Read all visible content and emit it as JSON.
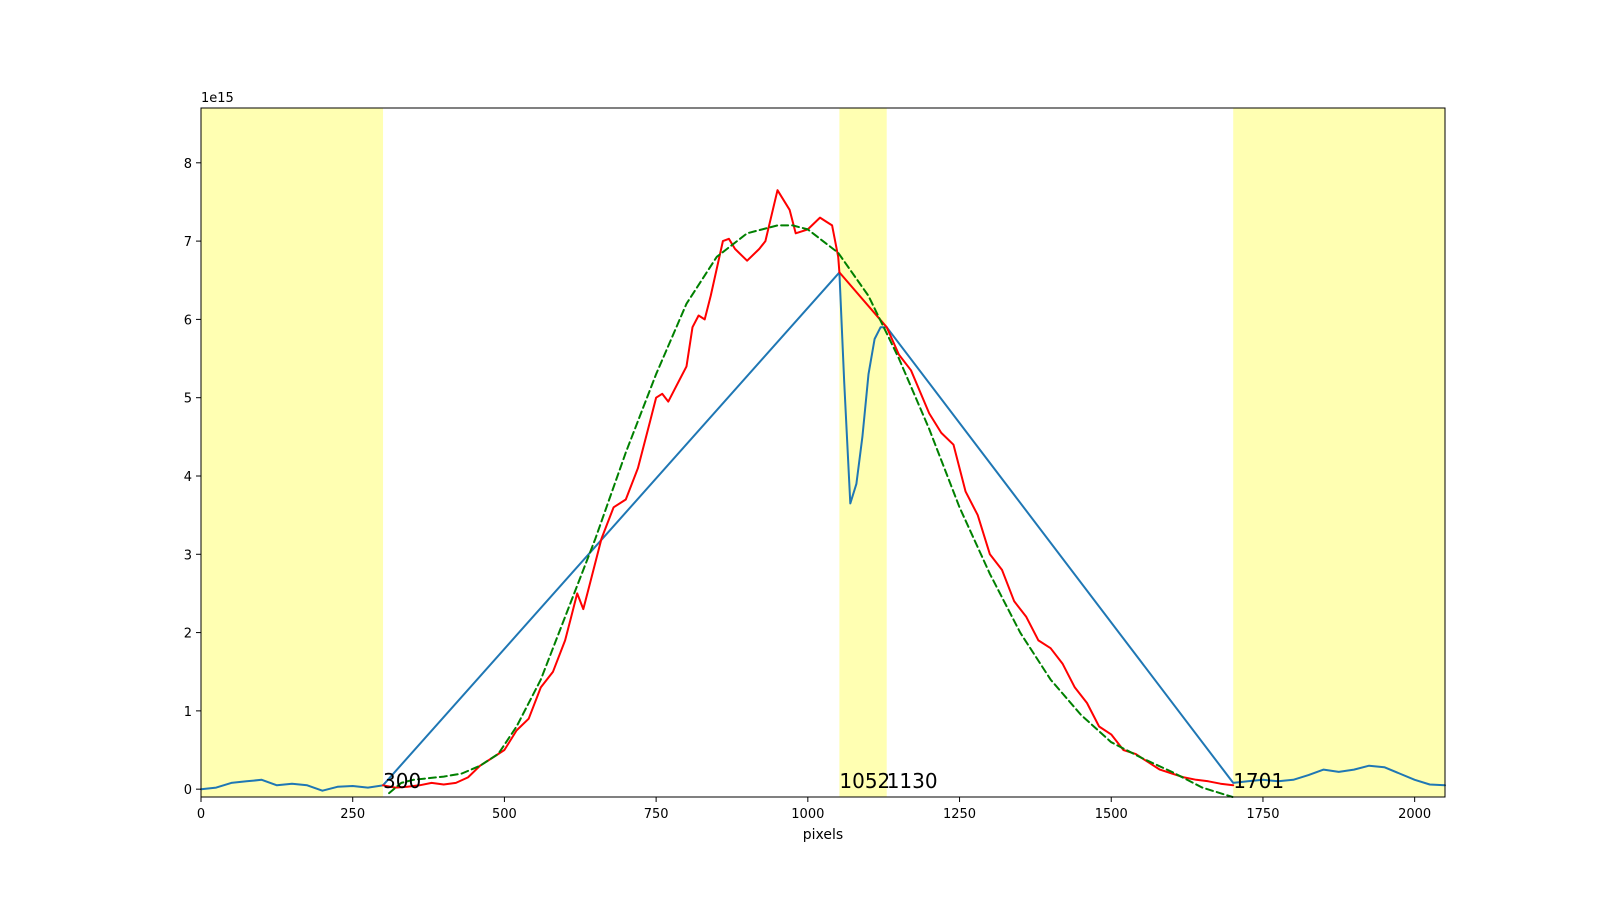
{
  "chart_data": {
    "type": "line",
    "title": "",
    "xlabel": "pixels",
    "ylabel": "",
    "y_offset_label": "1e15",
    "xlim": [
      0,
      2050
    ],
    "ylim": [
      -0.1,
      8.7
    ],
    "xticks": [
      0,
      250,
      500,
      750,
      1000,
      1250,
      1500,
      1750,
      2000
    ],
    "yticks": [
      0,
      1,
      2,
      3,
      4,
      5,
      6,
      7,
      8
    ],
    "grid": false,
    "highlight_color": "#ffffb2",
    "highlight_regions": [
      [
        0,
        300
      ],
      [
        1052,
        1130
      ],
      [
        1701,
        2050
      ]
    ],
    "annotations": [
      {
        "text": "300",
        "x": 300,
        "y": 0
      },
      {
        "text": "1052",
        "x": 1052,
        "y": 0
      },
      {
        "text": "1130",
        "x": 1130,
        "y": 0
      },
      {
        "text": "1701",
        "x": 1701,
        "y": 0
      }
    ],
    "series": [
      {
        "color": "#1f77b4",
        "style": "solid",
        "x": [
          0,
          25,
          50,
          75,
          100,
          125,
          150,
          175,
          200,
          225,
          250,
          275,
          300,
          1052,
          1060,
          1070,
          1080,
          1090,
          1100,
          1110,
          1120,
          1130,
          1701,
          1725,
          1750,
          1775,
          1800,
          1825,
          1850,
          1875,
          1900,
          1925,
          1950,
          1975,
          2000,
          2025,
          2050
        ],
        "y": [
          0.0,
          0.02,
          0.08,
          0.1,
          0.12,
          0.05,
          0.07,
          0.05,
          -0.02,
          0.03,
          0.04,
          0.02,
          0.05,
          6.6,
          5.2,
          3.65,
          3.9,
          4.5,
          5.3,
          5.75,
          5.9,
          5.9,
          0.08,
          0.1,
          0.12,
          0.1,
          0.12,
          0.18,
          0.25,
          0.22,
          0.25,
          0.3,
          0.28,
          0.2,
          0.12,
          0.06,
          0.05
        ]
      },
      {
        "color": "#ff0000",
        "style": "solid",
        "x": [
          300,
          320,
          340,
          360,
          380,
          400,
          420,
          440,
          460,
          480,
          500,
          520,
          540,
          560,
          580,
          600,
          610,
          620,
          630,
          640,
          660,
          680,
          700,
          720,
          740,
          750,
          760,
          770,
          780,
          800,
          810,
          820,
          830,
          840,
          860,
          870,
          880,
          900,
          920,
          930,
          950,
          970,
          980,
          1000,
          1020,
          1030,
          1040,
          1050,
          1052,
          1130,
          1150,
          1170,
          1200,
          1220,
          1240,
          1260,
          1280,
          1300,
          1320,
          1340,
          1360,
          1380,
          1400,
          1420,
          1440,
          1460,
          1480,
          1500,
          1520,
          1540,
          1560,
          1580,
          1600,
          1620,
          1640,
          1660,
          1680,
          1701
        ],
        "y": [
          0.05,
          0.02,
          0.03,
          0.05,
          0.08,
          0.06,
          0.08,
          0.15,
          0.3,
          0.4,
          0.5,
          0.75,
          0.9,
          1.3,
          1.5,
          1.9,
          2.2,
          2.5,
          2.3,
          2.6,
          3.2,
          3.6,
          3.7,
          4.1,
          4.7,
          5.0,
          5.05,
          4.95,
          5.1,
          5.4,
          5.9,
          6.05,
          6.0,
          6.3,
          7.0,
          7.03,
          6.9,
          6.75,
          6.9,
          7.0,
          7.65,
          7.4,
          7.1,
          7.15,
          7.3,
          7.25,
          7.2,
          6.8,
          6.6,
          5.9,
          5.55,
          5.35,
          4.8,
          4.55,
          4.4,
          3.8,
          3.5,
          3.0,
          2.8,
          2.4,
          2.2,
          1.9,
          1.8,
          1.6,
          1.3,
          1.1,
          0.8,
          0.7,
          0.5,
          0.45,
          0.35,
          0.25,
          0.2,
          0.15,
          0.12,
          0.1,
          0.07,
          0.05
        ]
      },
      {
        "color": "#008000",
        "style": "dashed",
        "x": [
          310,
          330,
          350,
          400,
          430,
          460,
          490,
          520,
          560,
          600,
          650,
          700,
          750,
          800,
          850,
          900,
          950,
          975,
          1000,
          1050,
          1100,
          1150,
          1200,
          1250,
          1300,
          1350,
          1400,
          1450,
          1500,
          1550,
          1600,
          1650,
          1700
        ],
        "y": [
          -0.05,
          0.08,
          0.12,
          0.16,
          0.2,
          0.3,
          0.45,
          0.8,
          1.4,
          2.2,
          3.2,
          4.3,
          5.3,
          6.2,
          6.8,
          7.1,
          7.2,
          7.2,
          7.15,
          6.85,
          6.3,
          5.5,
          4.6,
          3.6,
          2.75,
          2.0,
          1.4,
          0.95,
          0.6,
          0.4,
          0.22,
          0.02,
          -0.1
        ]
      }
    ]
  }
}
